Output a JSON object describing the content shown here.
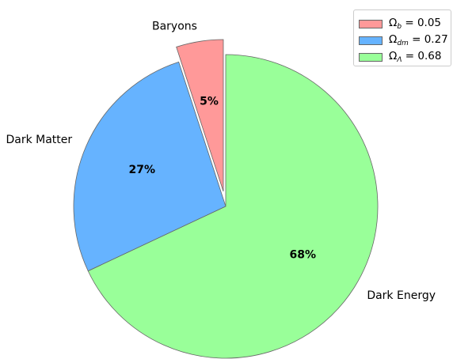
{
  "chart_data": {
    "type": "pie",
    "slices": [
      {
        "label": "Baryons",
        "value": 5,
        "pct_label": "5%",
        "color": "#ff9999",
        "exploded": true
      },
      {
        "label": "Dark Matter",
        "value": 27,
        "pct_label": "27%",
        "color": "#66b3ff",
        "exploded": false
      },
      {
        "label": "Dark Energy",
        "value": 68,
        "pct_label": "68%",
        "color": "#99ff99",
        "exploded": false
      }
    ],
    "start_angle_deg": 90,
    "direction": "counterclockwise",
    "legend": {
      "placement": "upper right",
      "entries": [
        {
          "symbol": "Ω",
          "sub": "b",
          "text": " = 0.05",
          "color": "#ff9999"
        },
        {
          "symbol": "Ω",
          "sub": "dm",
          "text": " = 0.27",
          "color": "#66b3ff"
        },
        {
          "symbol": "Ω",
          "sub": "Λ",
          "text": " = 0.68",
          "color": "#99ff99"
        }
      ]
    }
  }
}
